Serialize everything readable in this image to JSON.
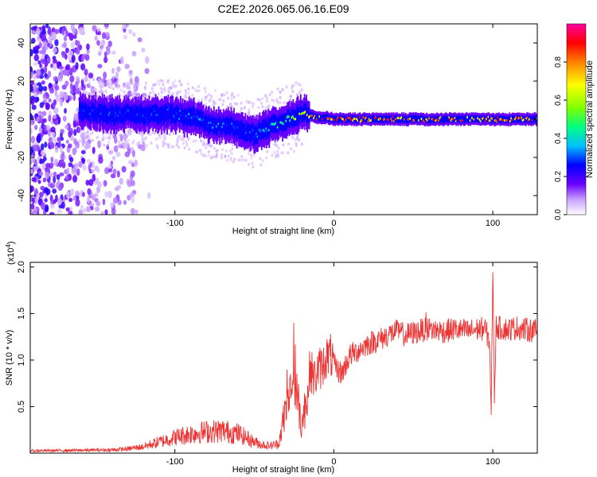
{
  "figure_title": "C2E2.2026.065.06.16.E09",
  "chart_data": [
    {
      "type": "heatmap",
      "panel": "spectrogram",
      "xlabel": "Height of straight line (km)",
      "ylabel": "Frequency (Hz)",
      "xlim": [
        -191,
        128
      ],
      "ylim": [
        -50,
        50
      ],
      "xticks": [
        -100,
        0,
        100
      ],
      "xtick_labels": [
        "-100",
        "0",
        "100"
      ],
      "yticks": [
        -40,
        -20,
        0,
        20,
        40
      ],
      "ytick_labels": [
        "-40",
        "-20",
        "0",
        "20",
        "40"
      ],
      "colorbar": {
        "label": "Normalized spectral amplitude",
        "range": [
          0,
          1
        ],
        "ticks": [
          0.0,
          0.2,
          0.4,
          0.6,
          0.8
        ],
        "tick_labels": [
          "0.0",
          "0.2",
          "0.4",
          "0.6",
          "0.8"
        ],
        "colormap": [
          "#ffffff",
          "#c8a0ff",
          "#6a00ff",
          "#0000ff",
          "#00c0ff",
          "#00ff80",
          "#80ff00",
          "#ffff00",
          "#ff8000",
          "#ff0000",
          "#ff00a0"
        ]
      },
      "ridge": {
        "x": [
          -160,
          -140,
          -120,
          -100,
          -90,
          -80,
          -70,
          -60,
          -55,
          -50,
          -45,
          -40,
          -35,
          -30,
          -25,
          -20,
          -15,
          -10,
          -5,
          0,
          10,
          20,
          40,
          60,
          80,
          100,
          120,
          128
        ],
        "frequency": [
          4,
          3,
          2,
          3,
          1,
          -2,
          -3,
          -5,
          -7,
          -8,
          -6,
          -4,
          -2,
          -1,
          1,
          4,
          2,
          1,
          1,
          0,
          0,
          0,
          0,
          0,
          0,
          0,
          0,
          0
        ],
        "amplitude": [
          0.35,
          0.35,
          0.35,
          0.35,
          0.4,
          0.4,
          0.4,
          0.35,
          0.35,
          0.35,
          0.4,
          0.45,
          0.5,
          0.6,
          0.65,
          0.75,
          0.8,
          0.85,
          0.9,
          0.9,
          0.9,
          0.9,
          0.9,
          0.9,
          0.9,
          0.9,
          0.9,
          0.9
        ]
      }
    },
    {
      "type": "line",
      "panel": "snr",
      "xlabel": "Height of straight line (km)",
      "ylabel": "SNR (10 * v/v)",
      "y_multiplier": "(x10",
      "y_multiplier_exp": "4",
      "y_multiplier_close": ")",
      "xlim": [
        -191,
        128
      ],
      "ylim": [
        0,
        20500
      ],
      "xticks": [
        -100,
        0,
        100
      ],
      "xtick_labels": [
        "-100",
        "0",
        "100"
      ],
      "yticks": [
        5000,
        10000,
        15000,
        20000
      ],
      "ytick_labels": [
        "0.5",
        "1.0",
        "1.5",
        "2.0"
      ],
      "color": "#ee3333",
      "series": [
        {
          "name": "SNR",
          "x": [
            -191,
            -160,
            -140,
            -130,
            -120,
            -110,
            -100,
            -90,
            -80,
            -70,
            -60,
            -50,
            -45,
            -40,
            -35,
            -32,
            -30,
            -27,
            -25,
            -22,
            -20,
            -17,
            -15,
            -12,
            -10,
            -7,
            -5,
            -2,
            0,
            3,
            5,
            8,
            10,
            15,
            20,
            25,
            30,
            35,
            40,
            45,
            50,
            55,
            60,
            65,
            70,
            75,
            80,
            85,
            90,
            95,
            98,
            99,
            100,
            101,
            102,
            105,
            110,
            115,
            120,
            125,
            128
          ],
          "y": [
            250,
            300,
            350,
            450,
            700,
            1200,
            1700,
            2100,
            2300,
            2400,
            2100,
            1200,
            900,
            800,
            1000,
            3200,
            5000,
            7000,
            8000,
            5000,
            3000,
            6000,
            9000,
            8000,
            9000,
            9300,
            10300,
            10500,
            9500,
            8800,
            8600,
            9700,
            10500,
            11000,
            11600,
            12000,
            12300,
            12800,
            13100,
            12700,
            12900,
            13200,
            13300,
            13200,
            13100,
            13300,
            13200,
            13100,
            13300,
            13400,
            12000,
            4000,
            20000,
            6000,
            13600,
            13400,
            13300,
            13500,
            13300,
            13200,
            13100
          ]
        }
      ]
    }
  ]
}
